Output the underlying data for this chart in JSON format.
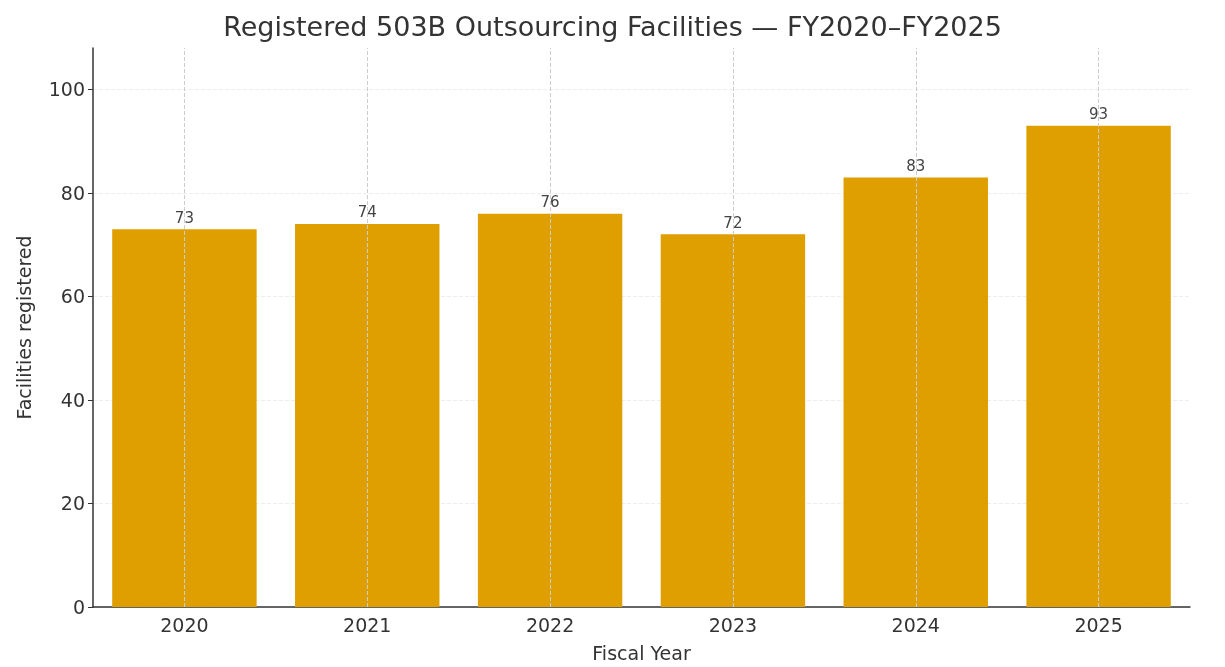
{
  "chart_data": {
    "type": "bar",
    "title": "Registered 503B Outsourcing Facilities — FY2020–FY2025",
    "xlabel": "Fiscal Year",
    "ylabel": "Facilities registered",
    "categories": [
      "2020",
      "2021",
      "2022",
      "2023",
      "2024",
      "2025"
    ],
    "values": [
      73,
      74,
      76,
      72,
      83,
      93
    ],
    "color": "#e09f00",
    "ylim": [
      0,
      108
    ],
    "yticks": [
      0,
      20,
      40,
      60,
      80,
      100
    ],
    "grid": true,
    "data_labels": true
  }
}
